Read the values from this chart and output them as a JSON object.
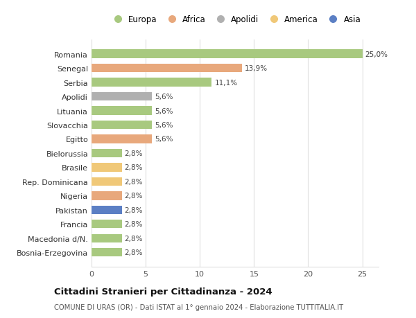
{
  "categories": [
    "Romania",
    "Senegal",
    "Serbia",
    "Apolidi",
    "Lituania",
    "Slovacchia",
    "Egitto",
    "Bielorussia",
    "Brasile",
    "Rep. Dominicana",
    "Nigeria",
    "Pakistan",
    "Francia",
    "Macedonia d/N.",
    "Bosnia-Erzegovina"
  ],
  "values": [
    25.0,
    13.9,
    11.1,
    5.6,
    5.6,
    5.6,
    5.6,
    2.8,
    2.8,
    2.8,
    2.8,
    2.8,
    2.8,
    2.8,
    2.8
  ],
  "labels": [
    "25,0%",
    "13,9%",
    "11,1%",
    "5,6%",
    "5,6%",
    "5,6%",
    "5,6%",
    "2,8%",
    "2,8%",
    "2,8%",
    "2,8%",
    "2,8%",
    "2,8%",
    "2,8%",
    "2,8%"
  ],
  "colors": [
    "#a8c97f",
    "#e8a87c",
    "#a8c97f",
    "#b0b0b0",
    "#a8c97f",
    "#a8c97f",
    "#e8a87c",
    "#a8c97f",
    "#f0c878",
    "#f0c878",
    "#e8a87c",
    "#5b7fc4",
    "#a8c97f",
    "#a8c97f",
    "#a8c97f"
  ],
  "legend_labels": [
    "Europa",
    "Africa",
    "Apolidi",
    "America",
    "Asia"
  ],
  "legend_colors": [
    "#a8c97f",
    "#e8a87c",
    "#b0b0b0",
    "#f0c878",
    "#5b7fc4"
  ],
  "title": "Cittadini Stranieri per Cittadinanza - 2024",
  "subtitle": "COMUNE DI URAS (OR) - Dati ISTAT al 1° gennaio 2024 - Elaborazione TUTTITALIA.IT",
  "xlim": [
    0,
    26.5
  ],
  "xticks": [
    0,
    5,
    10,
    15,
    20,
    25
  ],
  "bg_color": "#ffffff",
  "grid_color": "#dddddd"
}
